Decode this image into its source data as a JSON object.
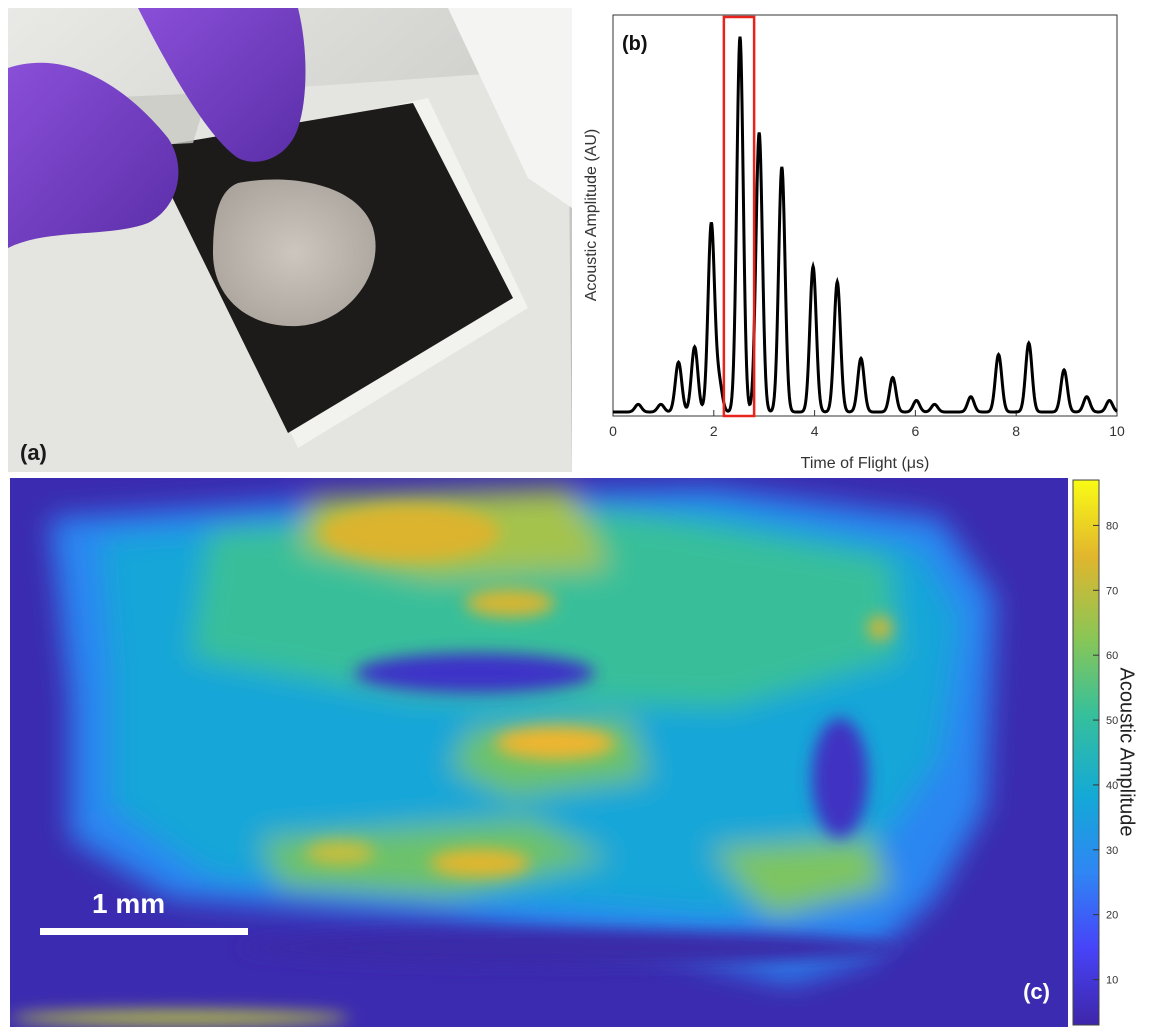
{
  "panel_a": {
    "label": "(a)"
  },
  "panel_c": {
    "label": "(c)",
    "scale_bar_label": "1 mm",
    "colorbar": {
      "title": "Acoustic Amplitude",
      "ticks": [
        "10",
        "20",
        "30",
        "40",
        "50",
        "60",
        "70",
        "80"
      ],
      "colormap": [
        "#3e26a8",
        "#4743f8",
        "#2f86f4",
        "#14a9d6",
        "#36c09b",
        "#8ac656",
        "#e1b62d",
        "#f9fb15"
      ]
    }
  },
  "chart_data": {
    "type": "line",
    "panel_label": "(b)",
    "title": "",
    "xlabel": "Time of Flight (μs)",
    "ylabel": "Acoustic Amplitude (AU)",
    "xlim": [
      0,
      10
    ],
    "x_ticks": [
      "0",
      "2",
      "4",
      "6",
      "8",
      "10"
    ],
    "y_ticks_shown": false,
    "highlight_window": {
      "x0": 2.2,
      "x1": 2.8,
      "color": "#e8231c"
    },
    "series": [
      {
        "color": "#000000",
        "peaks": [
          {
            "t": 0.5,
            "a": 0.02
          },
          {
            "t": 0.95,
            "a": 0.02
          },
          {
            "t": 1.3,
            "a": 0.13
          },
          {
            "t": 1.62,
            "a": 0.17
          },
          {
            "t": 1.95,
            "a": 0.49
          },
          {
            "t": 2.1,
            "a": 0.08
          },
          {
            "t": 2.52,
            "a": 0.98
          },
          {
            "t": 2.9,
            "a": 0.73
          },
          {
            "t": 3.35,
            "a": 0.64
          },
          {
            "t": 3.97,
            "a": 0.38
          },
          {
            "t": 4.45,
            "a": 0.34
          },
          {
            "t": 4.92,
            "a": 0.14
          },
          {
            "t": 5.55,
            "a": 0.09
          },
          {
            "t": 6.02,
            "a": 0.03
          },
          {
            "t": 6.38,
            "a": 0.02
          },
          {
            "t": 7.1,
            "a": 0.04
          },
          {
            "t": 7.65,
            "a": 0.15
          },
          {
            "t": 8.25,
            "a": 0.18
          },
          {
            "t": 8.95,
            "a": 0.11
          },
          {
            "t": 9.4,
            "a": 0.04
          },
          {
            "t": 9.85,
            "a": 0.03
          }
        ]
      }
    ]
  }
}
